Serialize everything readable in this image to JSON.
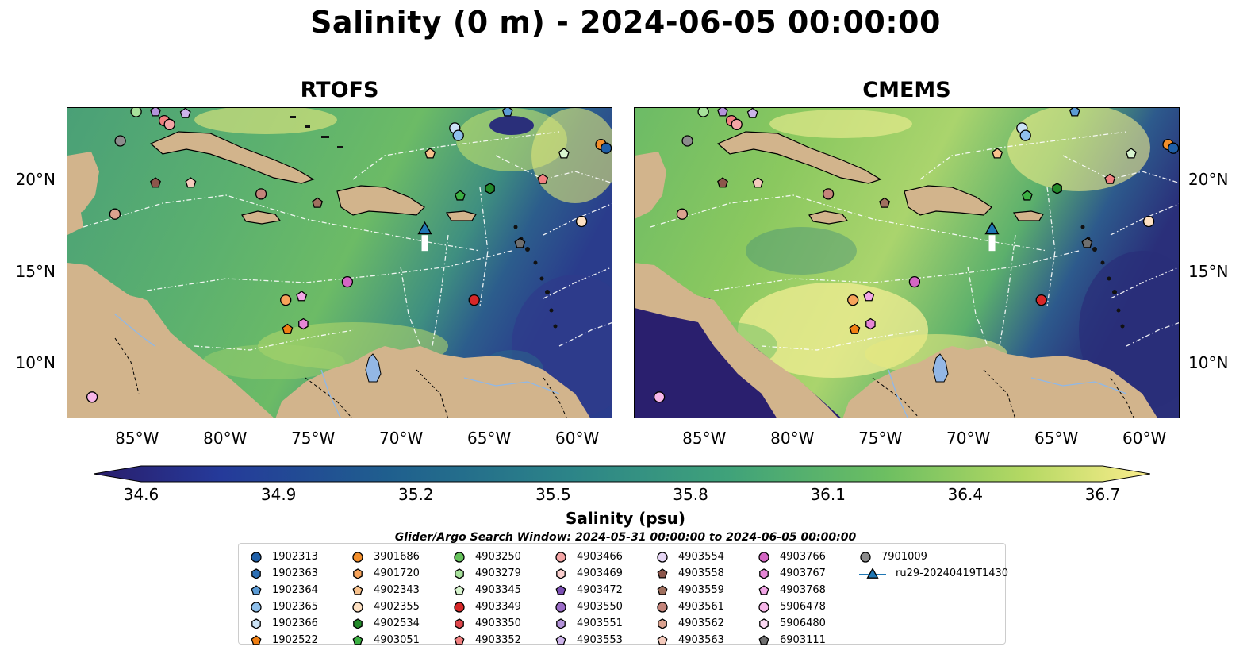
{
  "title": "Salinity (0 m) - 2024-06-05 00:00:00",
  "panels": [
    {
      "title": "RTOFS"
    },
    {
      "title": "CMEMS"
    }
  ],
  "axes": {
    "lon_ticks": [
      "85°W",
      "80°W",
      "75°W",
      "70°W",
      "65°W",
      "60°W"
    ],
    "lat_ticks": [
      "20°N",
      "15°N",
      "10°N"
    ],
    "lon_range": [
      -89,
      -58
    ],
    "lat_range": [
      7,
      24
    ]
  },
  "colorbar": {
    "label": "Salinity (psu)",
    "ticks": [
      "34.6",
      "34.9",
      "35.2",
      "35.5",
      "35.8",
      "36.1",
      "36.4",
      "36.7"
    ],
    "range": [
      34.6,
      36.7
    ],
    "colormap": "haline",
    "extend": "both"
  },
  "search_window": "Glider/Argo Search Window: 2024-05-31 00:00:00 to 2024-06-05 00:00:00",
  "legend": {
    "items": [
      {
        "label": "1902313",
        "marker": "circle",
        "color": "#1f5fa8"
      },
      {
        "label": "1902363",
        "marker": "hexagon",
        "color": "#2c6fb5"
      },
      {
        "label": "1902364",
        "marker": "pentagon",
        "color": "#5b9bd5"
      },
      {
        "label": "1902365",
        "marker": "circle",
        "color": "#8fc0ec"
      },
      {
        "label": "1902366",
        "marker": "hexagon",
        "color": "#cbe3f6"
      },
      {
        "label": "1902522",
        "marker": "pentagon",
        "color": "#f07f13"
      },
      {
        "label": "3901686",
        "marker": "circle",
        "color": "#f28e2b"
      },
      {
        "label": "4901720",
        "marker": "hexagon",
        "color": "#f7a35a"
      },
      {
        "label": "4902343",
        "marker": "pentagon",
        "color": "#f8c28d"
      },
      {
        "label": "4902355",
        "marker": "circle",
        "color": "#fde0c2"
      },
      {
        "label": "4902534",
        "marker": "hexagon",
        "color": "#238b2a"
      },
      {
        "label": "4903051",
        "marker": "pentagon",
        "color": "#3cb043"
      },
      {
        "label": "4903250",
        "marker": "circle",
        "color": "#66c25c"
      },
      {
        "label": "4903279",
        "marker": "hexagon",
        "color": "#a8e29c"
      },
      {
        "label": "4903345",
        "marker": "pentagon",
        "color": "#d8f5cf"
      },
      {
        "label": "4903349",
        "marker": "circle",
        "color": "#d62728"
      },
      {
        "label": "4903350",
        "marker": "hexagon",
        "color": "#e0474c"
      },
      {
        "label": "4903352",
        "marker": "pentagon",
        "color": "#f08080"
      },
      {
        "label": "4903466",
        "marker": "circle",
        "color": "#f4a5a5"
      },
      {
        "label": "4903469",
        "marker": "hexagon",
        "color": "#fcd0cf"
      },
      {
        "label": "4903472",
        "marker": "pentagon",
        "color": "#7b4fb3"
      },
      {
        "label": "4903550",
        "marker": "circle",
        "color": "#9a6cc6"
      },
      {
        "label": "4903551",
        "marker": "hexagon",
        "color": "#b493da"
      },
      {
        "label": "4903553",
        "marker": "pentagon",
        "color": "#cdb4ea"
      },
      {
        "label": "4903554",
        "marker": "circle",
        "color": "#e6d6f5"
      },
      {
        "label": "4903558",
        "marker": "pentagon",
        "color": "#8c564b"
      },
      {
        "label": "4903559",
        "marker": "pentagon",
        "color": "#a0705f"
      },
      {
        "label": "4903561",
        "marker": "circle",
        "color": "#c4847a"
      },
      {
        "label": "4903562",
        "marker": "hexagon",
        "color": "#dba28f"
      },
      {
        "label": "4903563",
        "marker": "pentagon",
        "color": "#f5cbbd"
      },
      {
        "label": "4903766",
        "marker": "circle",
        "color": "#d466c4"
      },
      {
        "label": "4903767",
        "marker": "hexagon",
        "color": "#e586d6"
      },
      {
        "label": "4903768",
        "marker": "pentagon",
        "color": "#f2a6e6"
      },
      {
        "label": "5906478",
        "marker": "circle",
        "color": "#f7b6e9"
      },
      {
        "label": "5906480",
        "marker": "hexagon",
        "color": "#fcd9f3"
      },
      {
        "label": "6903111",
        "marker": "pentagon",
        "color": "#6f6f6f"
      },
      {
        "label": "7901009",
        "marker": "circle",
        "color": "#8c8c8c"
      },
      {
        "label": "ru29-20240419T1430",
        "marker": "glider",
        "color": "#1f77b4"
      }
    ]
  },
  "floats": [
    {
      "lon": -85.1,
      "lat": 23.8,
      "color": "#a8e29c",
      "marker": "circle"
    },
    {
      "lon": -84.0,
      "lat": 23.8,
      "color": "#b493da",
      "marker": "pentagon"
    },
    {
      "lon": -82.3,
      "lat": 23.7,
      "color": "#cdb4ea",
      "marker": "pentagon"
    },
    {
      "lon": -83.5,
      "lat": 23.3,
      "color": "#f08080",
      "marker": "circle"
    },
    {
      "lon": -83.2,
      "lat": 23.1,
      "color": "#f4a5a5",
      "marker": "circle"
    },
    {
      "lon": -86.0,
      "lat": 22.2,
      "color": "#8c8c8c",
      "marker": "circle"
    },
    {
      "lon": -84.0,
      "lat": 19.9,
      "color": "#8c564b",
      "marker": "pentagon"
    },
    {
      "lon": -82.0,
      "lat": 19.9,
      "color": "#f5cbbd",
      "marker": "pentagon"
    },
    {
      "lon": -86.3,
      "lat": 18.2,
      "color": "#dba28f",
      "marker": "circle"
    },
    {
      "lon": -78.0,
      "lat": 19.3,
      "color": "#c4847a",
      "marker": "circle"
    },
    {
      "lon": -74.8,
      "lat": 18.8,
      "color": "#a0705f",
      "marker": "pentagon"
    },
    {
      "lon": -67.0,
      "lat": 22.9,
      "color": "#cbe3f6",
      "marker": "circle"
    },
    {
      "lon": -66.8,
      "lat": 22.5,
      "color": "#8fc0ec",
      "marker": "circle"
    },
    {
      "lon": -68.4,
      "lat": 21.5,
      "color": "#f8c28d",
      "marker": "pentagon"
    },
    {
      "lon": -64.0,
      "lat": 23.8,
      "color": "#5b9bd5",
      "marker": "pentagon"
    },
    {
      "lon": -60.8,
      "lat": 21.5,
      "color": "#d8f5cf",
      "marker": "pentagon"
    },
    {
      "lon": -58.7,
      "lat": 22.0,
      "color": "#f28e2b",
      "marker": "circle"
    },
    {
      "lon": -58.4,
      "lat": 21.8,
      "color": "#1f5fa8",
      "marker": "circle"
    },
    {
      "lon": -66.7,
      "lat": 19.2,
      "color": "#3cb043",
      "marker": "pentagon"
    },
    {
      "lon": -65.0,
      "lat": 19.6,
      "color": "#238b2a",
      "marker": "hexagon"
    },
    {
      "lon": -62.0,
      "lat": 20.1,
      "color": "#f08080",
      "marker": "pentagon"
    },
    {
      "lon": -59.8,
      "lat": 17.8,
      "color": "#fde0c2",
      "marker": "circle"
    },
    {
      "lon": -63.3,
      "lat": 16.6,
      "color": "#6f6f6f",
      "marker": "pentagon"
    },
    {
      "lon": -73.1,
      "lat": 14.5,
      "color": "#d466c4",
      "marker": "circle"
    },
    {
      "lon": -76.6,
      "lat": 13.5,
      "color": "#f7a35a",
      "marker": "circle"
    },
    {
      "lon": -75.7,
      "lat": 13.7,
      "color": "#f2a6e6",
      "marker": "pentagon"
    },
    {
      "lon": -76.5,
      "lat": 11.9,
      "color": "#f07f13",
      "marker": "pentagon"
    },
    {
      "lon": -75.6,
      "lat": 12.2,
      "color": "#e586d6",
      "marker": "hexagon"
    },
    {
      "lon": -65.9,
      "lat": 13.5,
      "color": "#d62728",
      "marker": "circle"
    },
    {
      "lon": -87.6,
      "lat": 8.2,
      "color": "#f7b6e9",
      "marker": "circle"
    }
  ],
  "glider": {
    "label": "ru29-20240419T1430",
    "lon": -68.7,
    "lat": 17.4
  }
}
